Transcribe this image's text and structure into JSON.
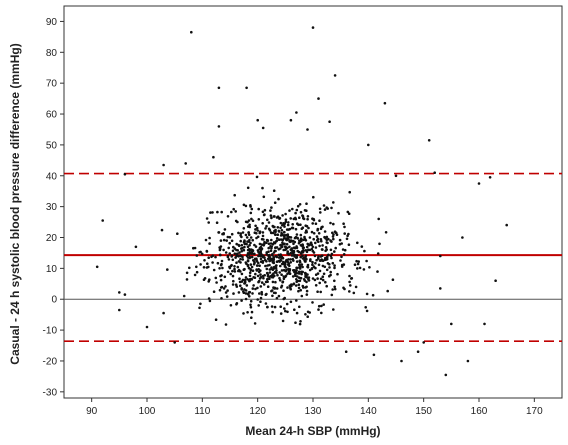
{
  "chart_data": {
    "type": "scatter",
    "title": "",
    "xlabel": "Mean 24-h SBP (mmHg)",
    "ylabel": "Casual - 24 h systolic blood pressure difference (mmHg)",
    "xlim": [
      85,
      175
    ],
    "ylim": [
      -32,
      95
    ],
    "xticks": [
      90,
      100,
      110,
      120,
      130,
      140,
      150,
      160,
      170
    ],
    "yticks": [
      -30,
      -20,
      -10,
      0,
      10,
      20,
      30,
      40,
      50,
      60,
      70,
      80,
      90
    ],
    "grid": false,
    "reference_lines": [
      {
        "name": "zero",
        "y": 0,
        "style": "solid",
        "color": "#555555"
      },
      {
        "name": "mean-difference",
        "y": 14.3,
        "style": "solid",
        "color": "#c00000"
      },
      {
        "name": "upper-limit-of-agreement",
        "y": 40.7,
        "style": "dashed",
        "color": "#c00000"
      },
      {
        "name": "lower-limit-of-agreement",
        "y": -13.6,
        "style": "dashed",
        "color": "#c00000"
      }
    ],
    "points": [
      [
        108,
        86.5
      ],
      [
        130,
        88
      ],
      [
        134,
        72.5
      ],
      [
        113,
        68.5
      ],
      [
        118,
        68.5
      ],
      [
        131,
        65
      ],
      [
        143,
        63.5
      ],
      [
        127,
        60.5
      ],
      [
        120,
        58
      ],
      [
        126,
        58
      ],
      [
        133,
        57.5
      ],
      [
        113,
        56
      ],
      [
        121,
        55.5
      ],
      [
        129,
        55
      ],
      [
        151,
        51.5
      ],
      [
        140,
        50
      ],
      [
        107,
        44
      ],
      [
        103,
        43.5
      ],
      [
        112,
        46
      ],
      [
        145,
        40
      ],
      [
        152,
        41
      ],
      [
        96,
        40.5
      ],
      [
        91,
        10.5
      ],
      [
        92,
        25.5
      ],
      [
        95,
        2.2
      ],
      [
        95,
        -3.5
      ],
      [
        96,
        1.5
      ],
      [
        98,
        17
      ],
      [
        153,
        14
      ],
      [
        153,
        3.5
      ],
      [
        155,
        -8
      ],
      [
        157,
        20
      ],
      [
        161,
        -8
      ],
      [
        163,
        6
      ],
      [
        165,
        24
      ],
      [
        160,
        37.5
      ],
      [
        162,
        39.5
      ],
      [
        154,
        -24.5
      ],
      [
        158,
        -20
      ],
      [
        149,
        -17
      ],
      [
        146,
        -20
      ],
      [
        141,
        -18
      ],
      [
        136,
        -17
      ],
      [
        150,
        -14
      ],
      [
        105,
        -14
      ],
      [
        103,
        -4.5
      ],
      [
        100,
        -9
      ]
    ],
    "cluster": {
      "n": 1050,
      "x_center": 124,
      "x_spread": 9.5,
      "y_center": 14,
      "y_spread": 11.5,
      "x_range": [
        97,
        152
      ],
      "y_range": [
        -20,
        54
      ],
      "seed": 7
    },
    "colors": {
      "points": "#111111",
      "limits": "#c00000",
      "zero_line": "#555555",
      "axes": "#333333"
    }
  }
}
